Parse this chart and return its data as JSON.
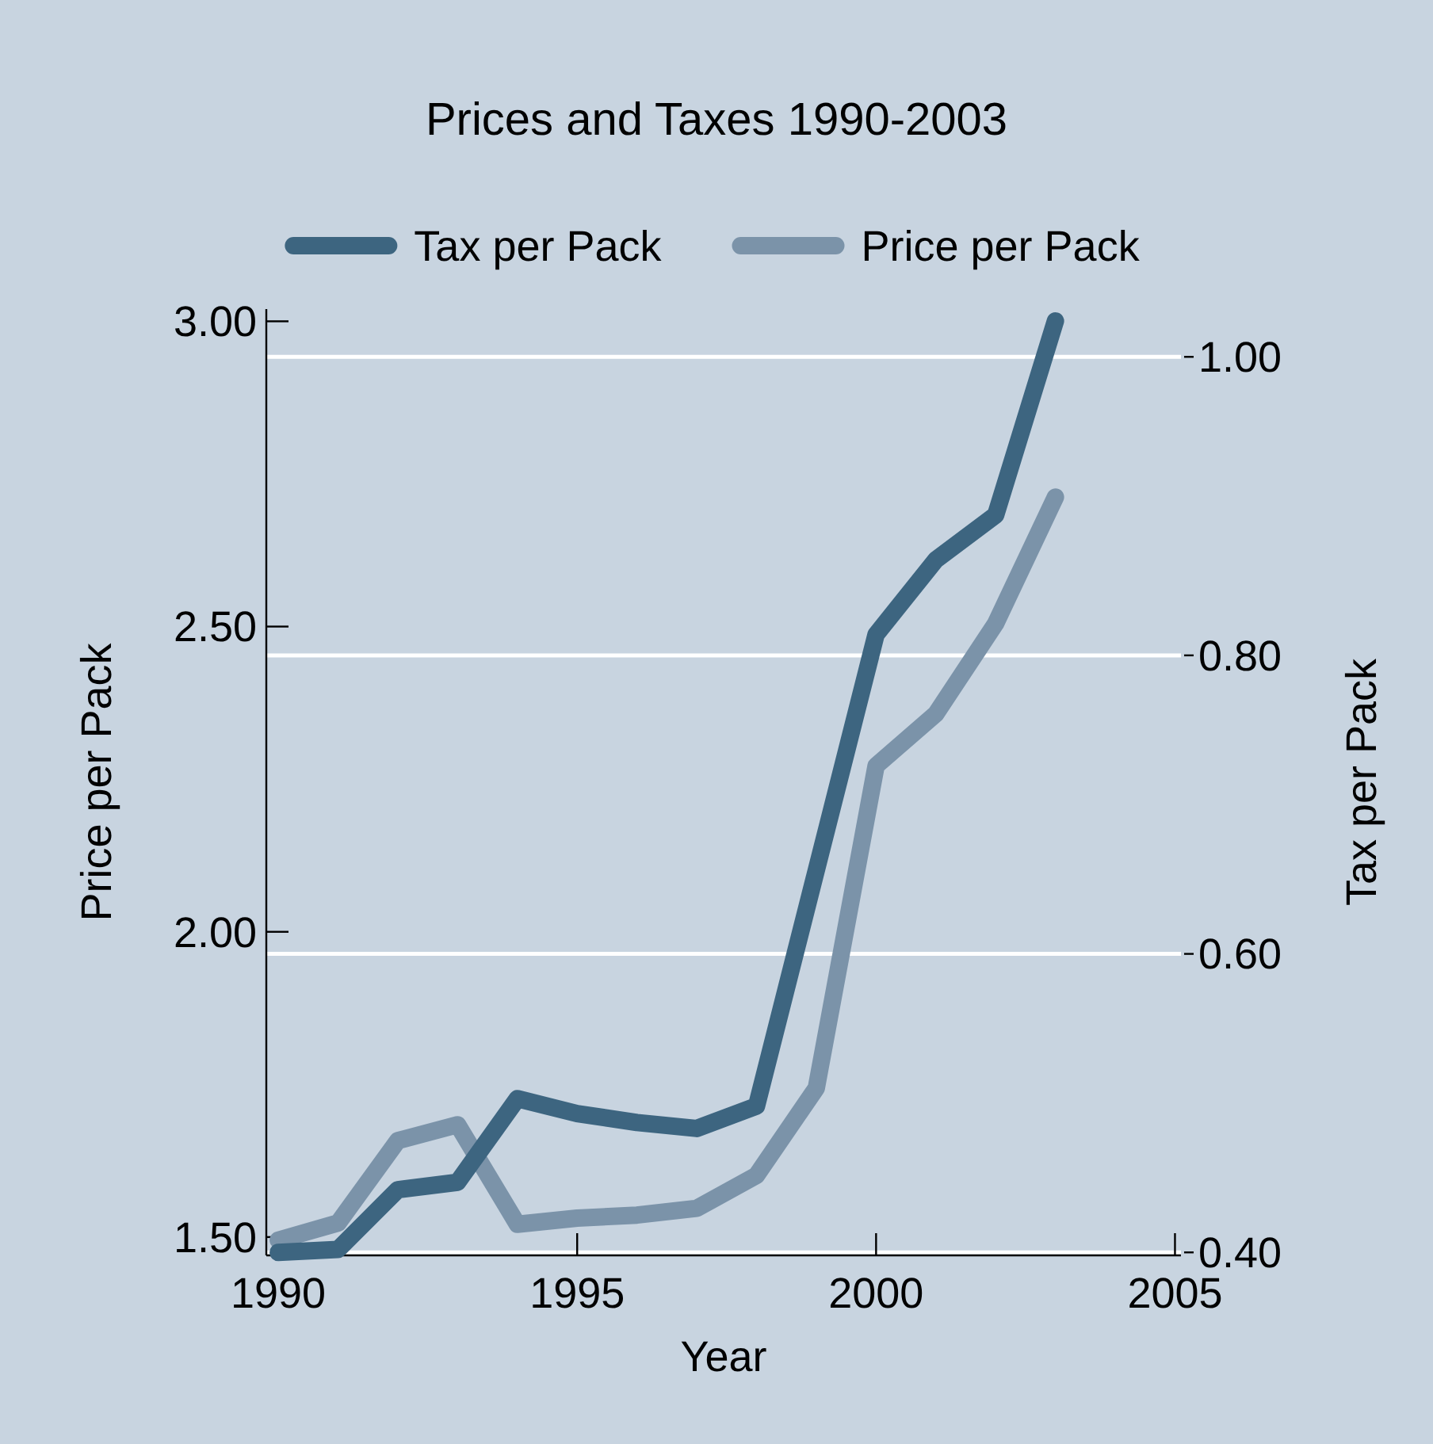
{
  "chart_data": {
    "type": "line",
    "title": "Prices and Taxes 1990-2003",
    "xlabel": "Year",
    "ylabel": "Price per Pack",
    "y2label": "Tax per Pack",
    "x": [
      1990,
      1991,
      1992,
      1993,
      1994,
      1995,
      1996,
      1997,
      1998,
      1999,
      2000,
      2001,
      2002,
      2003
    ],
    "series": [
      {
        "name": "Tax per Pack",
        "color": "#3d6580",
        "axis": "y2",
        "values": [
          0.4,
          0.402,
          0.442,
          0.447,
          0.503,
          0.493,
          0.487,
          0.483,
          0.498,
          0.656,
          0.814,
          0.864,
          0.894,
          1.024
        ]
      },
      {
        "name": "Price per Pack",
        "color": "#7b93a9",
        "values": [
          1.495,
          1.523,
          1.658,
          1.684,
          1.521,
          1.531,
          1.536,
          1.547,
          1.601,
          1.744,
          2.272,
          2.357,
          2.505,
          2.712
        ]
      }
    ],
    "xlim": [
      1989.8,
      2005.1
    ],
    "xticks": [
      1990,
      1995,
      2000,
      2005
    ],
    "ylim": [
      1.47,
      3.02
    ],
    "yticks": [
      {
        "value": 1.5,
        "label": "1.50"
      },
      {
        "value": 2,
        "label": "2.00"
      },
      {
        "value": 2.5,
        "label": "2.50"
      },
      {
        "value": 3,
        "label": "3.00"
      }
    ],
    "y2lim": [
      0.398,
      1.032
    ],
    "y2ticks": [
      {
        "value": 0.4,
        "label": "0.40"
      },
      {
        "value": 0.6,
        "label": "0.60"
      },
      {
        "value": 0.8,
        "label": "0.80"
      },
      {
        "value": 1,
        "label": "1.00"
      }
    ],
    "grid": "y2",
    "legend": "top",
    "marker": "none",
    "line_style": "solid"
  }
}
